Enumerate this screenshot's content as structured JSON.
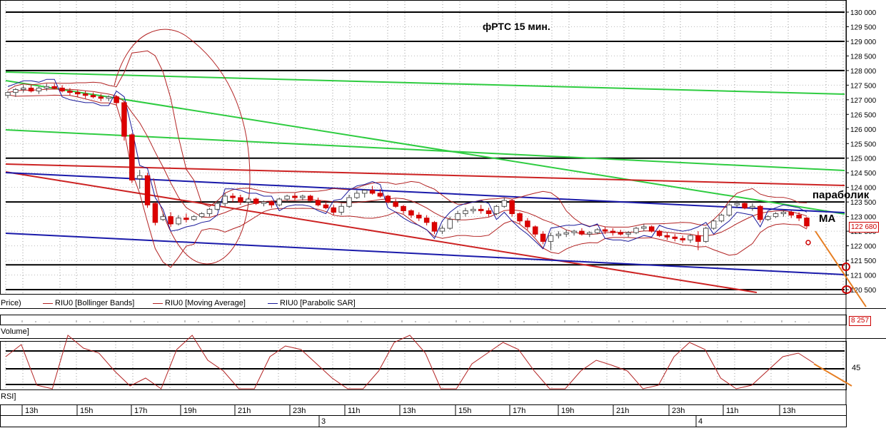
{
  "chart_data": {
    "type": "candlestick",
    "title": "фРТС  15 мин.",
    "annotations": {
      "parabolic": "параболик",
      "ma": "MA"
    },
    "price_axis": {
      "ticks": [
        "130 000",
        "129 500",
        "129 000",
        "128 500",
        "128 000",
        "127 500",
        "127 000",
        "126 500",
        "126 000",
        "125 500",
        "125 000",
        "124 500",
        "124 000",
        "123 500",
        "123 000",
        "122 500",
        "122 000",
        "121 500",
        "121 000",
        "120 500"
      ],
      "range": [
        120400,
        130100
      ],
      "current_price": "122 680"
    },
    "legend": [
      {
        "label": "Price)",
        "color": "#000000"
      },
      {
        "label": "RIU0 [Bollinger Bands]",
        "color": "#b22222"
      },
      {
        "label": "RIU0 [Moving Average]",
        "color": "#b22222"
      },
      {
        "label": "RIU0 [Parabolic SAR]",
        "color": "#1a1a9a"
      }
    ],
    "volume_panel": {
      "label": "Volume]",
      "last_value": "8 257"
    },
    "rsi_panel": {
      "label": "RSI]",
      "tick": "45",
      "range": [
        0,
        100
      ]
    },
    "time_axis": {
      "hour_labels": [
        "13h",
        "15h",
        "17h",
        "19h",
        "21h",
        "23h",
        "11h",
        "13h",
        "15h",
        "17h",
        "19h",
        "21h",
        "23h",
        "11h",
        "13h"
      ],
      "date_labels": [
        "3",
        "4"
      ]
    },
    "horizontal_levels": [
      130000,
      129000,
      128000,
      125000,
      123500,
      121350,
      120500
    ],
    "candles": [
      [
        127150,
        127300,
        127050,
        127250
      ],
      [
        127250,
        127400,
        127100,
        127350
      ],
      [
        127350,
        127500,
        127250,
        127400
      ],
      [
        127400,
        127500,
        127250,
        127300
      ],
      [
        127300,
        127450,
        127200,
        127400
      ],
      [
        127400,
        127550,
        127300,
        127450
      ],
      [
        127450,
        127550,
        127350,
        127400
      ],
      [
        127400,
        127500,
        127250,
        127300
      ],
      [
        127300,
        127400,
        127150,
        127250
      ],
      [
        127250,
        127350,
        127100,
        127200
      ],
      [
        127200,
        127300,
        127050,
        127150
      ],
      [
        127150,
        127250,
        127050,
        127100
      ],
      [
        127100,
        127200,
        126950,
        127050
      ],
      [
        127050,
        127150,
        126950,
        127100
      ],
      [
        127100,
        127150,
        126800,
        126900
      ],
      [
        126900,
        126950,
        125600,
        125750
      ],
      [
        125800,
        125850,
        124150,
        124250
      ],
      [
        124300,
        124600,
        123950,
        124400
      ],
      [
        124400,
        124500,
        123300,
        123400
      ],
      [
        123450,
        123500,
        122700,
        122800
      ],
      [
        122900,
        123100,
        122850,
        123000
      ],
      [
        123000,
        123150,
        122650,
        122750
      ],
      [
        122750,
        123050,
        122700,
        122950
      ],
      [
        122950,
        123100,
        122800,
        122900
      ],
      [
        122900,
        123050,
        122850,
        123000
      ],
      [
        123000,
        123150,
        122950,
        123100
      ],
      [
        123100,
        123300,
        123000,
        123250
      ],
      [
        123250,
        123550,
        123200,
        123450
      ],
      [
        123450,
        123800,
        123350,
        123700
      ],
      [
        123700,
        123800,
        123500,
        123650
      ],
      [
        123650,
        123750,
        123400,
        123500
      ],
      [
        123500,
        123650,
        123400,
        123600
      ],
      [
        123600,
        123650,
        123400,
        123450
      ],
      [
        123450,
        123550,
        123350,
        123500
      ],
      [
        123500,
        123550,
        123300,
        123400
      ],
      [
        123400,
        123650,
        123350,
        123600
      ],
      [
        123600,
        123750,
        123500,
        123700
      ],
      [
        123700,
        123800,
        123550,
        123650
      ],
      [
        123650,
        123750,
        123550,
        123700
      ],
      [
        123700,
        123750,
        123500,
        123550
      ],
      [
        123550,
        123650,
        123350,
        123400
      ],
      [
        123400,
        123500,
        123250,
        123300
      ],
      [
        123300,
        123400,
        123050,
        123150
      ],
      [
        123150,
        123450,
        123050,
        123350
      ],
      [
        123350,
        123750,
        123300,
        123650
      ],
      [
        123650,
        123900,
        123600,
        123800
      ],
      [
        123800,
        123950,
        123650,
        123900
      ],
      [
        123900,
        124050,
        123750,
        123800
      ],
      [
        123800,
        123950,
        123650,
        123700
      ],
      [
        123700,
        123750,
        123450,
        123500
      ],
      [
        123500,
        123600,
        123300,
        123350
      ],
      [
        123350,
        123400,
        123100,
        123200
      ],
      [
        123200,
        123250,
        122950,
        123050
      ],
      [
        123050,
        123150,
        122850,
        122950
      ],
      [
        122950,
        123050,
        122700,
        122800
      ],
      [
        122800,
        122850,
        122400,
        122500
      ],
      [
        122500,
        122700,
        122400,
        122600
      ],
      [
        122600,
        123000,
        122550,
        122900
      ],
      [
        122900,
        123200,
        122800,
        123100
      ],
      [
        123100,
        123300,
        123000,
        123200
      ],
      [
        123200,
        123350,
        123100,
        123250
      ],
      [
        123250,
        123400,
        123100,
        123200
      ],
      [
        123200,
        123300,
        123000,
        123100
      ],
      [
        123100,
        123400,
        123050,
        123350
      ],
      [
        123350,
        123650,
        123300,
        123550
      ],
      [
        123550,
        123600,
        123000,
        123100
      ],
      [
        123100,
        123150,
        122750,
        122850
      ],
      [
        122850,
        122950,
        122550,
        122650
      ],
      [
        122650,
        122700,
        122300,
        122400
      ],
      [
        122400,
        122500,
        122050,
        122150
      ],
      [
        122150,
        122450,
        121850,
        122350
      ],
      [
        122350,
        122500,
        122250,
        122400
      ],
      [
        122400,
        122550,
        122300,
        122450
      ],
      [
        122450,
        122550,
        122350,
        122500
      ],
      [
        122500,
        122600,
        122350,
        122400
      ],
      [
        122400,
        122500,
        122300,
        122450
      ],
      [
        122450,
        122600,
        122400,
        122550
      ],
      [
        122550,
        122650,
        122400,
        122500
      ],
      [
        122500,
        122600,
        122350,
        122450
      ],
      [
        122450,
        122550,
        122350,
        122400
      ],
      [
        122400,
        122500,
        122300,
        122450
      ],
      [
        122450,
        122650,
        122400,
        122600
      ],
      [
        122600,
        122750,
        122500,
        122650
      ],
      [
        122650,
        122700,
        122450,
        122500
      ],
      [
        122500,
        122550,
        122300,
        122350
      ],
      [
        122350,
        122450,
        122200,
        122300
      ],
      [
        122300,
        122400,
        122150,
        122250
      ],
      [
        122250,
        122350,
        122100,
        122200
      ],
      [
        122200,
        122400,
        122100,
        122350
      ],
      [
        122350,
        122500,
        121850,
        122150
      ],
      [
        122150,
        122650,
        122100,
        122600
      ],
      [
        122600,
        122900,
        122550,
        122850
      ],
      [
        122850,
        123100,
        122800,
        123050
      ],
      [
        123050,
        123450,
        123000,
        123400
      ],
      [
        123400,
        123550,
        123300,
        123450
      ],
      [
        123450,
        123500,
        123250,
        123300
      ],
      [
        123300,
        123450,
        123200,
        123350
      ],
      [
        123350,
        123400,
        122800,
        122900
      ],
      [
        122900,
        123050,
        122850,
        123000
      ],
      [
        123000,
        123150,
        122950,
        123100
      ],
      [
        123100,
        123250,
        123000,
        123150
      ],
      [
        123150,
        123200,
        122950,
        123050
      ],
      [
        123050,
        123150,
        122850,
        122950
      ],
      [
        122950,
        123000,
        122600,
        122680
      ]
    ]
  }
}
